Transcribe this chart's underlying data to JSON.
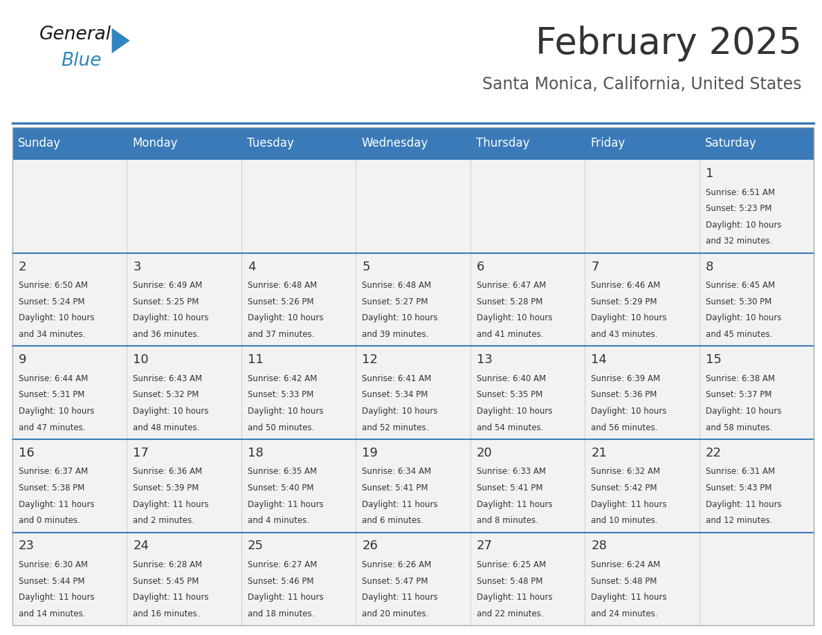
{
  "title": "February 2025",
  "subtitle": "Santa Monica, California, United States",
  "header_color": "#3a7ab8",
  "header_text_color": "#ffffff",
  "day_headers": [
    "Sunday",
    "Monday",
    "Tuesday",
    "Wednesday",
    "Thursday",
    "Friday",
    "Saturday"
  ],
  "title_color": "#333333",
  "subtitle_color": "#555555",
  "cell_bg_color": "#f2f2f2",
  "separator_color": "#3a7ab8",
  "text_color": "#333333",
  "days": [
    {
      "day": 1,
      "col": 6,
      "row": 0,
      "sunrise": "6:51 AM",
      "sunset": "5:23 PM",
      "daylight_hours": 10,
      "daylight_minutes": 32
    },
    {
      "day": 2,
      "col": 0,
      "row": 1,
      "sunrise": "6:50 AM",
      "sunset": "5:24 PM",
      "daylight_hours": 10,
      "daylight_minutes": 34
    },
    {
      "day": 3,
      "col": 1,
      "row": 1,
      "sunrise": "6:49 AM",
      "sunset": "5:25 PM",
      "daylight_hours": 10,
      "daylight_minutes": 36
    },
    {
      "day": 4,
      "col": 2,
      "row": 1,
      "sunrise": "6:48 AM",
      "sunset": "5:26 PM",
      "daylight_hours": 10,
      "daylight_minutes": 37
    },
    {
      "day": 5,
      "col": 3,
      "row": 1,
      "sunrise": "6:48 AM",
      "sunset": "5:27 PM",
      "daylight_hours": 10,
      "daylight_minutes": 39
    },
    {
      "day": 6,
      "col": 4,
      "row": 1,
      "sunrise": "6:47 AM",
      "sunset": "5:28 PM",
      "daylight_hours": 10,
      "daylight_minutes": 41
    },
    {
      "day": 7,
      "col": 5,
      "row": 1,
      "sunrise": "6:46 AM",
      "sunset": "5:29 PM",
      "daylight_hours": 10,
      "daylight_minutes": 43
    },
    {
      "day": 8,
      "col": 6,
      "row": 1,
      "sunrise": "6:45 AM",
      "sunset": "5:30 PM",
      "daylight_hours": 10,
      "daylight_minutes": 45
    },
    {
      "day": 9,
      "col": 0,
      "row": 2,
      "sunrise": "6:44 AM",
      "sunset": "5:31 PM",
      "daylight_hours": 10,
      "daylight_minutes": 47
    },
    {
      "day": 10,
      "col": 1,
      "row": 2,
      "sunrise": "6:43 AM",
      "sunset": "5:32 PM",
      "daylight_hours": 10,
      "daylight_minutes": 48
    },
    {
      "day": 11,
      "col": 2,
      "row": 2,
      "sunrise": "6:42 AM",
      "sunset": "5:33 PM",
      "daylight_hours": 10,
      "daylight_minutes": 50
    },
    {
      "day": 12,
      "col": 3,
      "row": 2,
      "sunrise": "6:41 AM",
      "sunset": "5:34 PM",
      "daylight_hours": 10,
      "daylight_minutes": 52
    },
    {
      "day": 13,
      "col": 4,
      "row": 2,
      "sunrise": "6:40 AM",
      "sunset": "5:35 PM",
      "daylight_hours": 10,
      "daylight_minutes": 54
    },
    {
      "day": 14,
      "col": 5,
      "row": 2,
      "sunrise": "6:39 AM",
      "sunset": "5:36 PM",
      "daylight_hours": 10,
      "daylight_minutes": 56
    },
    {
      "day": 15,
      "col": 6,
      "row": 2,
      "sunrise": "6:38 AM",
      "sunset": "5:37 PM",
      "daylight_hours": 10,
      "daylight_minutes": 58
    },
    {
      "day": 16,
      "col": 0,
      "row": 3,
      "sunrise": "6:37 AM",
      "sunset": "5:38 PM",
      "daylight_hours": 11,
      "daylight_minutes": 0
    },
    {
      "day": 17,
      "col": 1,
      "row": 3,
      "sunrise": "6:36 AM",
      "sunset": "5:39 PM",
      "daylight_hours": 11,
      "daylight_minutes": 2
    },
    {
      "day": 18,
      "col": 2,
      "row": 3,
      "sunrise": "6:35 AM",
      "sunset": "5:40 PM",
      "daylight_hours": 11,
      "daylight_minutes": 4
    },
    {
      "day": 19,
      "col": 3,
      "row": 3,
      "sunrise": "6:34 AM",
      "sunset": "5:41 PM",
      "daylight_hours": 11,
      "daylight_minutes": 6
    },
    {
      "day": 20,
      "col": 4,
      "row": 3,
      "sunrise": "6:33 AM",
      "sunset": "5:41 PM",
      "daylight_hours": 11,
      "daylight_minutes": 8
    },
    {
      "day": 21,
      "col": 5,
      "row": 3,
      "sunrise": "6:32 AM",
      "sunset": "5:42 PM",
      "daylight_hours": 11,
      "daylight_minutes": 10
    },
    {
      "day": 22,
      "col": 6,
      "row": 3,
      "sunrise": "6:31 AM",
      "sunset": "5:43 PM",
      "daylight_hours": 11,
      "daylight_minutes": 12
    },
    {
      "day": 23,
      "col": 0,
      "row": 4,
      "sunrise": "6:30 AM",
      "sunset": "5:44 PM",
      "daylight_hours": 11,
      "daylight_minutes": 14
    },
    {
      "day": 24,
      "col": 1,
      "row": 4,
      "sunrise": "6:28 AM",
      "sunset": "5:45 PM",
      "daylight_hours": 11,
      "daylight_minutes": 16
    },
    {
      "day": 25,
      "col": 2,
      "row": 4,
      "sunrise": "6:27 AM",
      "sunset": "5:46 PM",
      "daylight_hours": 11,
      "daylight_minutes": 18
    },
    {
      "day": 26,
      "col": 3,
      "row": 4,
      "sunrise": "6:26 AM",
      "sunset": "5:47 PM",
      "daylight_hours": 11,
      "daylight_minutes": 20
    },
    {
      "day": 27,
      "col": 4,
      "row": 4,
      "sunrise": "6:25 AM",
      "sunset": "5:48 PM",
      "daylight_hours": 11,
      "daylight_minutes": 22
    },
    {
      "day": 28,
      "col": 5,
      "row": 4,
      "sunrise": "6:24 AM",
      "sunset": "5:48 PM",
      "daylight_hours": 11,
      "daylight_minutes": 24
    }
  ],
  "logo_color_general": "#1a1a1a",
  "logo_color_blue": "#2e86c1",
  "logo_triangle_color": "#2e86c1"
}
